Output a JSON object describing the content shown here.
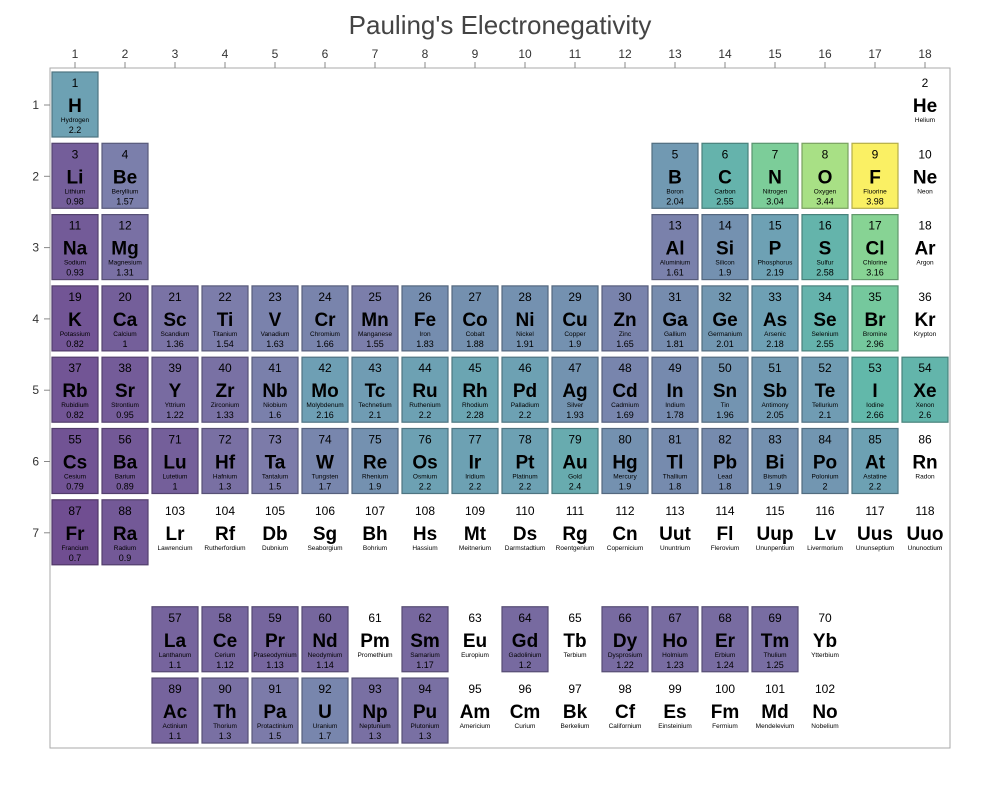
{
  "chart_data": {
    "type": "heatmap",
    "title": "Pauling's Electronegativity",
    "x_ticks": [
      "1",
      "2",
      "3",
      "4",
      "5",
      "6",
      "7",
      "8",
      "9",
      "10",
      "11",
      "12",
      "13",
      "14",
      "15",
      "16",
      "17",
      "18"
    ],
    "y_ticks": [
      "1",
      "2",
      "3",
      "4",
      "5",
      "6",
      "7"
    ],
    "value_range": [
      0.7,
      3.98
    ],
    "colormap": "viridis-like (purple low, teal mid, yellow high); empty cell when no value",
    "elements": [
      {
        "n": "1",
        "s": "H",
        "name": "Hydrogen",
        "v": "2.2",
        "group": 1,
        "row": 1
      },
      {
        "n": "2",
        "s": "He",
        "name": "Helium",
        "v": "",
        "group": 18,
        "row": 1
      },
      {
        "n": "3",
        "s": "Li",
        "name": "Lithium",
        "v": "0.98",
        "group": 1,
        "row": 2
      },
      {
        "n": "4",
        "s": "Be",
        "name": "Beryllium",
        "v": "1.57",
        "group": 2,
        "row": 2
      },
      {
        "n": "5",
        "s": "B",
        "name": "Boron",
        "v": "2.04",
        "group": 13,
        "row": 2
      },
      {
        "n": "6",
        "s": "C",
        "name": "Carbon",
        "v": "2.55",
        "group": 14,
        "row": 2
      },
      {
        "n": "7",
        "s": "N",
        "name": "Nitrogen",
        "v": "3.04",
        "group": 15,
        "row": 2
      },
      {
        "n": "8",
        "s": "O",
        "name": "Oxygen",
        "v": "3.44",
        "group": 16,
        "row": 2
      },
      {
        "n": "9",
        "s": "F",
        "name": "Fluorine",
        "v": "3.98",
        "group": 17,
        "row": 2
      },
      {
        "n": "10",
        "s": "Ne",
        "name": "Neon",
        "v": "",
        "group": 18,
        "row": 2
      },
      {
        "n": "11",
        "s": "Na",
        "name": "Sodium",
        "v": "0.93",
        "group": 1,
        "row": 3
      },
      {
        "n": "12",
        "s": "Mg",
        "name": "Magnesium",
        "v": "1.31",
        "group": 2,
        "row": 3
      },
      {
        "n": "13",
        "s": "Al",
        "name": "Aluminium",
        "v": "1.61",
        "group": 13,
        "row": 3
      },
      {
        "n": "14",
        "s": "Si",
        "name": "Silicon",
        "v": "1.9",
        "group": 14,
        "row": 3
      },
      {
        "n": "15",
        "s": "P",
        "name": "Phosphorus",
        "v": "2.19",
        "group": 15,
        "row": 3
      },
      {
        "n": "16",
        "s": "S",
        "name": "Sulfur",
        "v": "2.58",
        "group": 16,
        "row": 3
      },
      {
        "n": "17",
        "s": "Cl",
        "name": "Chlorine",
        "v": "3.16",
        "group": 17,
        "row": 3
      },
      {
        "n": "18",
        "s": "Ar",
        "name": "Argon",
        "v": "",
        "group": 18,
        "row": 3
      },
      {
        "n": "19",
        "s": "K",
        "name": "Potassium",
        "v": "0.82",
        "group": 1,
        "row": 4
      },
      {
        "n": "20",
        "s": "Ca",
        "name": "Calcium",
        "v": "1",
        "group": 2,
        "row": 4
      },
      {
        "n": "21",
        "s": "Sc",
        "name": "Scandium",
        "v": "1.36",
        "group": 3,
        "row": 4
      },
      {
        "n": "22",
        "s": "Ti",
        "name": "Titanium",
        "v": "1.54",
        "group": 4,
        "row": 4
      },
      {
        "n": "23",
        "s": "V",
        "name": "Vanadium",
        "v": "1.63",
        "group": 5,
        "row": 4
      },
      {
        "n": "24",
        "s": "Cr",
        "name": "Chromium",
        "v": "1.66",
        "group": 6,
        "row": 4
      },
      {
        "n": "25",
        "s": "Mn",
        "name": "Manganese",
        "v": "1.55",
        "group": 7,
        "row": 4
      },
      {
        "n": "26",
        "s": "Fe",
        "name": "Iron",
        "v": "1.83",
        "group": 8,
        "row": 4
      },
      {
        "n": "27",
        "s": "Co",
        "name": "Cobalt",
        "v": "1.88",
        "group": 9,
        "row": 4
      },
      {
        "n": "28",
        "s": "Ni",
        "name": "Nickel",
        "v": "1.91",
        "group": 10,
        "row": 4
      },
      {
        "n": "29",
        "s": "Cu",
        "name": "Copper",
        "v": "1.9",
        "group": 11,
        "row": 4
      },
      {
        "n": "30",
        "s": "Zn",
        "name": "Zinc",
        "v": "1.65",
        "group": 12,
        "row": 4
      },
      {
        "n": "31",
        "s": "Ga",
        "name": "Gallium",
        "v": "1.81",
        "group": 13,
        "row": 4
      },
      {
        "n": "32",
        "s": "Ge",
        "name": "Germanium",
        "v": "2.01",
        "group": 14,
        "row": 4
      },
      {
        "n": "33",
        "s": "As",
        "name": "Arsenic",
        "v": "2.18",
        "group": 15,
        "row": 4
      },
      {
        "n": "34",
        "s": "Se",
        "name": "Selenium",
        "v": "2.55",
        "group": 16,
        "row": 4
      },
      {
        "n": "35",
        "s": "Br",
        "name": "Bromine",
        "v": "2.96",
        "group": 17,
        "row": 4
      },
      {
        "n": "36",
        "s": "Kr",
        "name": "Krypton",
        "v": "",
        "group": 18,
        "row": 4
      },
      {
        "n": "37",
        "s": "Rb",
        "name": "Rubidium",
        "v": "0.82",
        "group": 1,
        "row": 5
      },
      {
        "n": "38",
        "s": "Sr",
        "name": "Strontium",
        "v": "0.95",
        "group": 2,
        "row": 5
      },
      {
        "n": "39",
        "s": "Y",
        "name": "Yttrium",
        "v": "1.22",
        "group": 3,
        "row": 5
      },
      {
        "n": "40",
        "s": "Zr",
        "name": "Zirconium",
        "v": "1.33",
        "group": 4,
        "row": 5
      },
      {
        "n": "41",
        "s": "Nb",
        "name": "Niobium",
        "v": "1.6",
        "group": 5,
        "row": 5
      },
      {
        "n": "42",
        "s": "Mo",
        "name": "Molybdenum",
        "v": "2.16",
        "group": 6,
        "row": 5
      },
      {
        "n": "43",
        "s": "Tc",
        "name": "Technetium",
        "v": "2.1",
        "group": 7,
        "row": 5
      },
      {
        "n": "44",
        "s": "Ru",
        "name": "Ruthenium",
        "v": "2.2",
        "group": 8,
        "row": 5
      },
      {
        "n": "45",
        "s": "Rh",
        "name": "Rhodium",
        "v": "2.28",
        "group": 9,
        "row": 5
      },
      {
        "n": "46",
        "s": "Pd",
        "name": "Palladium",
        "v": "2.2",
        "group": 10,
        "row": 5
      },
      {
        "n": "47",
        "s": "Ag",
        "name": "Silver",
        "v": "1.93",
        "group": 11,
        "row": 5
      },
      {
        "n": "48",
        "s": "Cd",
        "name": "Cadmium",
        "v": "1.69",
        "group": 12,
        "row": 5
      },
      {
        "n": "49",
        "s": "In",
        "name": "Indium",
        "v": "1.78",
        "group": 13,
        "row": 5
      },
      {
        "n": "50",
        "s": "Sn",
        "name": "Tin",
        "v": "1.96",
        "group": 14,
        "row": 5
      },
      {
        "n": "51",
        "s": "Sb",
        "name": "Antimony",
        "v": "2.05",
        "group": 15,
        "row": 5
      },
      {
        "n": "52",
        "s": "Te",
        "name": "Tellurium",
        "v": "2.1",
        "group": 16,
        "row": 5
      },
      {
        "n": "53",
        "s": "I",
        "name": "Iodine",
        "v": "2.66",
        "group": 17,
        "row": 5
      },
      {
        "n": "54",
        "s": "Xe",
        "name": "Xenon",
        "v": "2.6",
        "group": 18,
        "row": 5
      },
      {
        "n": "55",
        "s": "Cs",
        "name": "Cesium",
        "v": "0.79",
        "group": 1,
        "row": 6
      },
      {
        "n": "56",
        "s": "Ba",
        "name": "Barium",
        "v": "0.89",
        "group": 2,
        "row": 6
      },
      {
        "n": "71",
        "s": "Lu",
        "name": "Lutetium",
        "v": "1",
        "group": 3,
        "row": 6
      },
      {
        "n": "72",
        "s": "Hf",
        "name": "Hafnium",
        "v": "1.3",
        "group": 4,
        "row": 6
      },
      {
        "n": "73",
        "s": "Ta",
        "name": "Tantalum",
        "v": "1.5",
        "group": 5,
        "row": 6
      },
      {
        "n": "74",
        "s": "W",
        "name": "Tungsten",
        "v": "1.7",
        "group": 6,
        "row": 6
      },
      {
        "n": "75",
        "s": "Re",
        "name": "Rhenium",
        "v": "1.9",
        "group": 7,
        "row": 6
      },
      {
        "n": "76",
        "s": "Os",
        "name": "Osmium",
        "v": "2.2",
        "group": 8,
        "row": 6
      },
      {
        "n": "77",
        "s": "Ir",
        "name": "Iridium",
        "v": "2.2",
        "group": 9,
        "row": 6
      },
      {
        "n": "78",
        "s": "Pt",
        "name": "Platinum",
        "v": "2.2",
        "group": 10,
        "row": 6
      },
      {
        "n": "79",
        "s": "Au",
        "name": "Gold",
        "v": "2.4",
        "group": 11,
        "row": 6
      },
      {
        "n": "80",
        "s": "Hg",
        "name": "Mercury",
        "v": "1.9",
        "group": 12,
        "row": 6
      },
      {
        "n": "81",
        "s": "Tl",
        "name": "Thallium",
        "v": "1.8",
        "group": 13,
        "row": 6
      },
      {
        "n": "82",
        "s": "Pb",
        "name": "Lead",
        "v": "1.8",
        "group": 14,
        "row": 6
      },
      {
        "n": "83",
        "s": "Bi",
        "name": "Bismuth",
        "v": "1.9",
        "group": 15,
        "row": 6
      },
      {
        "n": "84",
        "s": "Po",
        "name": "Polonium",
        "v": "2",
        "group": 16,
        "row": 6
      },
      {
        "n": "85",
        "s": "At",
        "name": "Astatine",
        "v": "2.2",
        "group": 17,
        "row": 6
      },
      {
        "n": "86",
        "s": "Rn",
        "name": "Radon",
        "v": "",
        "group": 18,
        "row": 6
      },
      {
        "n": "87",
        "s": "Fr",
        "name": "Francium",
        "v": "0.7",
        "group": 1,
        "row": 7
      },
      {
        "n": "88",
        "s": "Ra",
        "name": "Radium",
        "v": "0.9",
        "group": 2,
        "row": 7
      },
      {
        "n": "103",
        "s": "Lr",
        "name": "Lawrencium",
        "v": "",
        "group": 3,
        "row": 7
      },
      {
        "n": "104",
        "s": "Rf",
        "name": "Rutherfordium",
        "v": "",
        "group": 4,
        "row": 7
      },
      {
        "n": "105",
        "s": "Db",
        "name": "Dubnium",
        "v": "",
        "group": 5,
        "row": 7
      },
      {
        "n": "106",
        "s": "Sg",
        "name": "Seaborgium",
        "v": "",
        "group": 6,
        "row": 7
      },
      {
        "n": "107",
        "s": "Bh",
        "name": "Bohrium",
        "v": "",
        "group": 7,
        "row": 7
      },
      {
        "n": "108",
        "s": "Hs",
        "name": "Hassium",
        "v": "",
        "group": 8,
        "row": 7
      },
      {
        "n": "109",
        "s": "Mt",
        "name": "Meitnerium",
        "v": "",
        "group": 9,
        "row": 7
      },
      {
        "n": "110",
        "s": "Ds",
        "name": "Darmstadtium",
        "v": "",
        "group": 10,
        "row": 7
      },
      {
        "n": "111",
        "s": "Rg",
        "name": "Roentgenium",
        "v": "",
        "group": 11,
        "row": 7
      },
      {
        "n": "112",
        "s": "Cn",
        "name": "Copernicium",
        "v": "",
        "group": 12,
        "row": 7
      },
      {
        "n": "113",
        "s": "Uut",
        "name": "Ununtrium",
        "v": "",
        "group": 13,
        "row": 7
      },
      {
        "n": "114",
        "s": "Fl",
        "name": "Flerovium",
        "v": "",
        "group": 14,
        "row": 7
      },
      {
        "n": "115",
        "s": "Uup",
        "name": "Ununpentium",
        "v": "",
        "group": 15,
        "row": 7
      },
      {
        "n": "116",
        "s": "Lv",
        "name": "Livermorium",
        "v": "",
        "group": 16,
        "row": 7
      },
      {
        "n": "117",
        "s": "Uus",
        "name": "Ununseptium",
        "v": "",
        "group": 17,
        "row": 7
      },
      {
        "n": "118",
        "s": "Uuo",
        "name": "Ununoctium",
        "v": "",
        "group": 18,
        "row": 7
      },
      {
        "n": "57",
        "s": "La",
        "name": "Lanthanum",
        "v": "1.1",
        "group": 3,
        "row": 8.5
      },
      {
        "n": "58",
        "s": "Ce",
        "name": "Cerium",
        "v": "1.12",
        "group": 4,
        "row": 8.5
      },
      {
        "n": "59",
        "s": "Pr",
        "name": "Praseodymium",
        "v": "1.13",
        "group": 5,
        "row": 8.5
      },
      {
        "n": "60",
        "s": "Nd",
        "name": "Neodymium",
        "v": "1.14",
        "group": 6,
        "row": 8.5
      },
      {
        "n": "61",
        "s": "Pm",
        "name": "Promethium",
        "v": "",
        "group": 7,
        "row": 8.5
      },
      {
        "n": "62",
        "s": "Sm",
        "name": "Samarium",
        "v": "1.17",
        "group": 8,
        "row": 8.5
      },
      {
        "n": "63",
        "s": "Eu",
        "name": "Europium",
        "v": "",
        "group": 9,
        "row": 8.5
      },
      {
        "n": "64",
        "s": "Gd",
        "name": "Gadolinium",
        "v": "1.2",
        "group": 10,
        "row": 8.5
      },
      {
        "n": "65",
        "s": "Tb",
        "name": "Terbium",
        "v": "",
        "group": 11,
        "row": 8.5
      },
      {
        "n": "66",
        "s": "Dy",
        "name": "Dysprosium",
        "v": "1.22",
        "group": 12,
        "row": 8.5
      },
      {
        "n": "67",
        "s": "Ho",
        "name": "Holmium",
        "v": "1.23",
        "group": 13,
        "row": 8.5
      },
      {
        "n": "68",
        "s": "Er",
        "name": "Erbium",
        "v": "1.24",
        "group": 14,
        "row": 8.5
      },
      {
        "n": "69",
        "s": "Tm",
        "name": "Thulium",
        "v": "1.25",
        "group": 15,
        "row": 8.5
      },
      {
        "n": "70",
        "s": "Yb",
        "name": "Ytterbium",
        "v": "",
        "group": 16,
        "row": 8.5
      },
      {
        "n": "89",
        "s": "Ac",
        "name": "Actinium",
        "v": "1.1",
        "group": 3,
        "row": 9.5
      },
      {
        "n": "90",
        "s": "Th",
        "name": "Thorium",
        "v": "1.3",
        "group": 4,
        "row": 9.5
      },
      {
        "n": "91",
        "s": "Pa",
        "name": "Protactinium",
        "v": "1.5",
        "group": 5,
        "row": 9.5
      },
      {
        "n": "92",
        "s": "U",
        "name": "Uranium",
        "v": "1.7",
        "group": 6,
        "row": 9.5
      },
      {
        "n": "93",
        "s": "Np",
        "name": "Neptunium",
        "v": "1.3",
        "group": 7,
        "row": 9.5
      },
      {
        "n": "94",
        "s": "Pu",
        "name": "Plutonium",
        "v": "1.3",
        "group": 8,
        "row": 9.5
      },
      {
        "n": "95",
        "s": "Am",
        "name": "Americium",
        "v": "",
        "group": 9,
        "row": 9.5
      },
      {
        "n": "96",
        "s": "Cm",
        "name": "Curium",
        "v": "",
        "group": 10,
        "row": 9.5
      },
      {
        "n": "97",
        "s": "Bk",
        "name": "Berkelium",
        "v": "",
        "group": 11,
        "row": 9.5
      },
      {
        "n": "98",
        "s": "Cf",
        "name": "Californium",
        "v": "",
        "group": 12,
        "row": 9.5
      },
      {
        "n": "99",
        "s": "Es",
        "name": "Einsteinium",
        "v": "",
        "group": 13,
        "row": 9.5
      },
      {
        "n": "100",
        "s": "Fm",
        "name": "Fermium",
        "v": "",
        "group": 14,
        "row": 9.5
      },
      {
        "n": "101",
        "s": "Md",
        "name": "Mendelevium",
        "v": "",
        "group": 15,
        "row": 9.5
      },
      {
        "n": "102",
        "s": "No",
        "name": "Nobelium",
        "v": "",
        "group": 16,
        "row": 9.5
      }
    ]
  }
}
